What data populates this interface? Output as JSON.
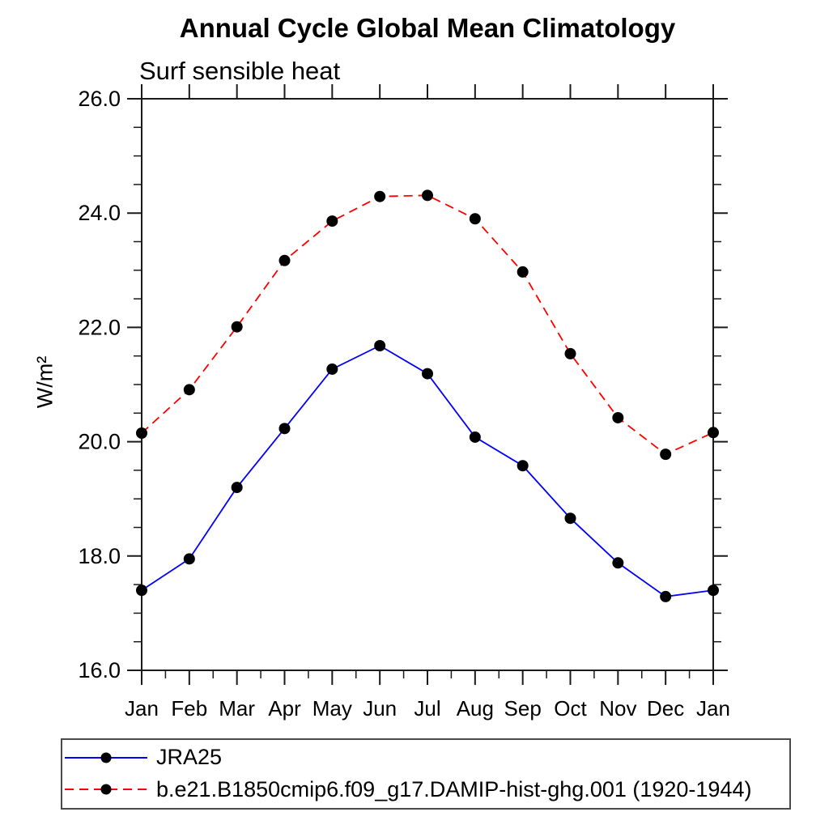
{
  "header": {
    "title": "Annual Cycle Global Mean Climatology",
    "subtitle": "Surf sensible heat"
  },
  "chart_data": {
    "type": "line",
    "title": "Annual Cycle Global Mean Climatology",
    "subtitle": "Surf sensible heat",
    "xlabel": "",
    "ylabel": "W/m²",
    "x_labels": [
      "Jan",
      "Feb",
      "Mar",
      "Apr",
      "May",
      "Jun",
      "Jul",
      "Aug",
      "Sep",
      "Oct",
      "Nov",
      "Dec",
      "Jan"
    ],
    "ylim": [
      16.0,
      26.0
    ],
    "y_major_tick_labels": [
      "16.0",
      "18.0",
      "20.0",
      "22.0",
      "24.0",
      "26.0"
    ],
    "y_minor_step": 0.5,
    "grid": false,
    "frame_color": "#1a1a1a",
    "legend_position": "bottom-left-box",
    "series": [
      {
        "name": "JRA25",
        "color": "#0000ff",
        "line_style": "solid",
        "marker": "filled-circle",
        "marker_color": "#000000",
        "values": [
          17.4,
          17.95,
          19.2,
          20.23,
          21.27,
          21.68,
          21.19,
          20.08,
          19.58,
          18.66,
          17.88,
          17.29,
          17.4
        ]
      },
      {
        "name": "b.e21.B1850cmip6.f09_g17.DAMIP-hist-ghg.001 (1920-1944)",
        "color": "#ff0000",
        "line_style": "dashed",
        "marker": "filled-circle",
        "marker_color": "#000000",
        "values": [
          20.15,
          20.91,
          22.01,
          23.17,
          23.86,
          24.29,
          24.31,
          23.9,
          22.97,
          21.54,
          20.42,
          19.78,
          20.16
        ]
      }
    ]
  }
}
